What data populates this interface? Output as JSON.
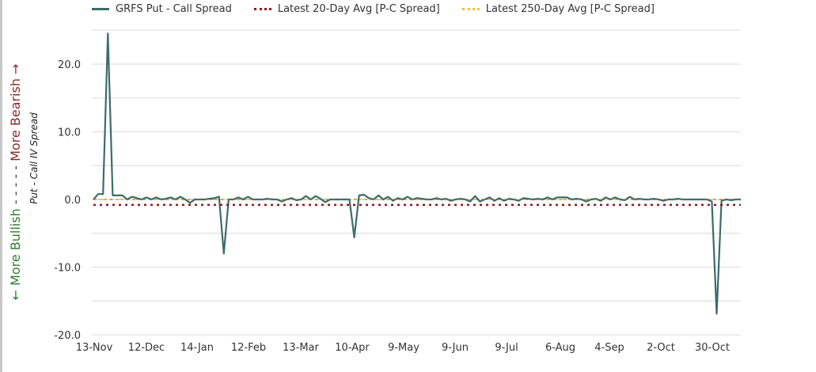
{
  "legend": {
    "series1": "GRFS Put - Call Spread",
    "series2": "Latest 20-Day Avg [P-C Spread]",
    "series3": "Latest 250-Day Avg [P-C Spread]"
  },
  "axis": {
    "y_outer_bullish": "← More Bullish",
    "y_outer_dashes": " - - - - - ",
    "y_outer_bearish": "More Bearish →",
    "y_inner_title": "Put - Call IV Spread"
  },
  "colors": {
    "series1": "#3d6b6b",
    "avg20": "#8b1a1a",
    "avg250": "#f0c040",
    "grid": "#e0e0e0"
  },
  "chart_data": {
    "type": "line",
    "title": "",
    "xlabel": "",
    "ylabel": "Put - Call IV Spread",
    "ylim": [
      -20,
      25
    ],
    "yticks": [
      -20.0,
      -10.0,
      0.0,
      10.0,
      20.0
    ],
    "ytick_labels": [
      "-20.0",
      "-10.0",
      "0.0",
      "10.0",
      "20.0"
    ],
    "grid": true,
    "legend_position": "top",
    "xtick_labels": [
      "13-Nov",
      "12-Dec",
      "14-Jan",
      "12-Feb",
      "13-Mar",
      "10-Apr",
      "9-May",
      "9-Jun",
      "9-Jul",
      "6-Aug",
      "4-Sep",
      "2-Oct",
      "30-Oct"
    ],
    "series": [
      {
        "name": "GRFS Put - Call Spread",
        "style": "solid",
        "points": [
          [
            0,
            0.0
          ],
          [
            1,
            0.8
          ],
          [
            2,
            0.8
          ],
          [
            3,
            24.5
          ],
          [
            4,
            0.6
          ],
          [
            5,
            0.6
          ],
          [
            6,
            0.6
          ],
          [
            7,
            0.0
          ],
          [
            8,
            0.4
          ],
          [
            9,
            0.2
          ],
          [
            10,
            0.0
          ],
          [
            11,
            0.3
          ],
          [
            12,
            0.0
          ],
          [
            13,
            0.3
          ],
          [
            14,
            0.0
          ],
          [
            15,
            0.1
          ],
          [
            16,
            0.3
          ],
          [
            17,
            0.0
          ],
          [
            18,
            0.4
          ],
          [
            19,
            0.0
          ],
          [
            20,
            -0.5
          ],
          [
            21,
            0.0
          ],
          [
            22,
            0.0
          ],
          [
            23,
            0.0
          ],
          [
            24,
            0.1
          ],
          [
            25,
            0.2
          ],
          [
            26,
            0.4
          ],
          [
            27,
            -8.0
          ],
          [
            28,
            0.0
          ],
          [
            29,
            0.0
          ],
          [
            30,
            0.3
          ],
          [
            31,
            0.0
          ],
          [
            32,
            0.4
          ],
          [
            33,
            0.0
          ],
          [
            34,
            0.0
          ],
          [
            35,
            0.0
          ],
          [
            36,
            0.1
          ],
          [
            37,
            0.0
          ],
          [
            38,
            0.0
          ],
          [
            39,
            -0.3
          ],
          [
            40,
            0.0
          ],
          [
            41,
            0.2
          ],
          [
            42,
            -0.1
          ],
          [
            43,
            0.0
          ],
          [
            44,
            0.5
          ],
          [
            45,
            0.0
          ],
          [
            46,
            0.5
          ],
          [
            47,
            0.1
          ],
          [
            48,
            -0.4
          ],
          [
            49,
            0.0
          ],
          [
            50,
            0.0
          ],
          [
            51,
            0.0
          ],
          [
            52,
            0.0
          ],
          [
            53,
            0.0
          ],
          [
            54,
            -5.6
          ],
          [
            55,
            0.6
          ],
          [
            56,
            0.7
          ],
          [
            57,
            0.2
          ],
          [
            58,
            0.0
          ],
          [
            59,
            0.6
          ],
          [
            60,
            0.0
          ],
          [
            61,
            0.4
          ],
          [
            62,
            -0.2
          ],
          [
            63,
            0.2
          ],
          [
            64,
            0.0
          ],
          [
            65,
            0.4
          ],
          [
            66,
            0.0
          ],
          [
            67,
            0.2
          ],
          [
            68,
            0.1
          ],
          [
            69,
            0.0
          ],
          [
            70,
            0.0
          ],
          [
            71,
            0.2
          ],
          [
            72,
            0.0
          ],
          [
            73,
            0.1
          ],
          [
            74,
            -0.2
          ],
          [
            75,
            0.0
          ],
          [
            76,
            0.1
          ],
          [
            77,
            0.0
          ],
          [
            78,
            -0.3
          ],
          [
            79,
            0.5
          ],
          [
            80,
            -0.3
          ],
          [
            81,
            0.0
          ],
          [
            82,
            0.3
          ],
          [
            83,
            -0.2
          ],
          [
            84,
            0.2
          ],
          [
            85,
            -0.2
          ],
          [
            86,
            0.1
          ],
          [
            87,
            0.0
          ],
          [
            88,
            -0.2
          ],
          [
            89,
            0.2
          ],
          [
            90,
            0.1
          ],
          [
            91,
            0.0
          ],
          [
            92,
            0.1
          ],
          [
            93,
            0.0
          ],
          [
            94,
            0.3
          ],
          [
            95,
            0.0
          ],
          [
            96,
            0.3
          ],
          [
            97,
            0.3
          ],
          [
            98,
            0.3
          ],
          [
            99,
            0.0
          ],
          [
            100,
            0.1
          ],
          [
            101,
            0.0
          ],
          [
            102,
            -0.3
          ],
          [
            103,
            0.0
          ],
          [
            104,
            0.1
          ],
          [
            105,
            -0.2
          ],
          [
            106,
            0.3
          ],
          [
            107,
            0.0
          ],
          [
            108,
            0.3
          ],
          [
            109,
            0.0
          ],
          [
            110,
            -0.1
          ],
          [
            111,
            0.4
          ],
          [
            112,
            0.0
          ],
          [
            113,
            0.1
          ],
          [
            114,
            0.0
          ],
          [
            115,
            0.0
          ],
          [
            116,
            0.1
          ],
          [
            117,
            0.0
          ],
          [
            118,
            -0.2
          ],
          [
            119,
            0.0
          ],
          [
            120,
            0.0
          ],
          [
            121,
            0.1
          ],
          [
            122,
            0.0
          ],
          [
            123,
            0.0
          ],
          [
            124,
            0.0
          ],
          [
            125,
            0.0
          ],
          [
            126,
            0.0
          ],
          [
            127,
            0.0
          ],
          [
            128,
            -0.3
          ],
          [
            129,
            -16.9
          ],
          [
            130,
            -0.2
          ],
          [
            131,
            0.0
          ],
          [
            132,
            -0.1
          ],
          [
            133,
            0.0
          ],
          [
            134,
            0.0
          ]
        ]
      },
      {
        "name": "Latest 20-Day Avg [P-C Spread]",
        "style": "dotted",
        "value": -0.8
      },
      {
        "name": "Latest 250-Day Avg [P-C Spread]",
        "style": "dotted",
        "value": 0.0
      }
    ]
  }
}
